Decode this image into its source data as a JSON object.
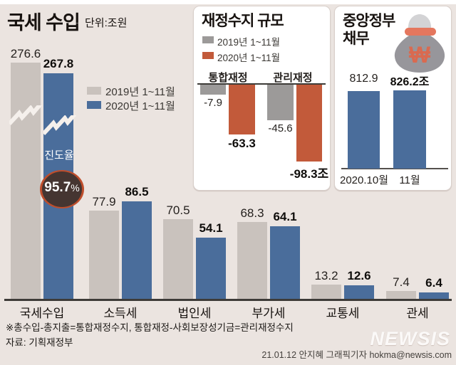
{
  "header": {
    "title": "국세 수입",
    "unit": "단위:조원"
  },
  "progress_badge": {
    "label": "진도율",
    "value": "95.7",
    "suffix": "%"
  },
  "chart_data": [
    {
      "id": "national-tax-revenue",
      "type": "bar",
      "title": "국세 수입",
      "unit": "조원",
      "categories": [
        "국세수입",
        "소득세",
        "법인세",
        "부가세",
        "교통세",
        "관세"
      ],
      "series": [
        {
          "name": "2019년 1~11월",
          "color": "#c9c2bd",
          "values": [
            276.6,
            77.9,
            70.5,
            68.3,
            13.2,
            7.4
          ]
        },
        {
          "name": "2020년 1~11월",
          "color": "#4a6d9b",
          "values": [
            267.8,
            86.5,
            54.1,
            64.1,
            12.6,
            6.4
          ]
        }
      ],
      "annotations": {
        "progress_label": "진도율",
        "progress_value": "95.7%",
        "axis_break_on": "국세수입"
      },
      "legend_position": "upper-left-of-plot",
      "grid": false
    },
    {
      "id": "fiscal-balance",
      "type": "bar",
      "title": "재정수지 규모",
      "unit": "조원",
      "categories": [
        "통합재정",
        "관리재정"
      ],
      "series": [
        {
          "name": "2019년 1~11월",
          "color": "#9c9a99",
          "values": [
            -7.9,
            -45.6
          ]
        },
        {
          "name": "2020년 1~11월",
          "color": "#c25a3a",
          "values": [
            -63.3,
            -98.3
          ]
        }
      ],
      "value_labels": [
        [
          "-7.9",
          "-45.6"
        ],
        [
          "-63.3",
          "-98.3조"
        ]
      ],
      "legend_position": "top",
      "grid": false
    },
    {
      "id": "central-government-debt",
      "type": "bar",
      "title": "중앙정부 채무",
      "unit": "조원",
      "categories": [
        "2020.10월",
        "11월"
      ],
      "series": [
        {
          "name": "중앙정부 채무",
          "color": "#4a6d9b",
          "values": [
            812.9,
            826.2
          ]
        }
      ],
      "value_labels": [
        "812.9",
        "826.2조"
      ],
      "grid": false
    }
  ],
  "debt_panel": {
    "title_line1": "중앙정부",
    "title_line2": "채무",
    "bag_symbol": "₩"
  },
  "footer": {
    "note": "※총수입-총지출=통합재정수지, 통합재정-사회보장성기금=관리재정수지",
    "source": "자료: 기획재정부",
    "logo": "NEWSIS",
    "credit": "21.01.12 안지혜 그래픽기자 hokma@newsis.com"
  }
}
